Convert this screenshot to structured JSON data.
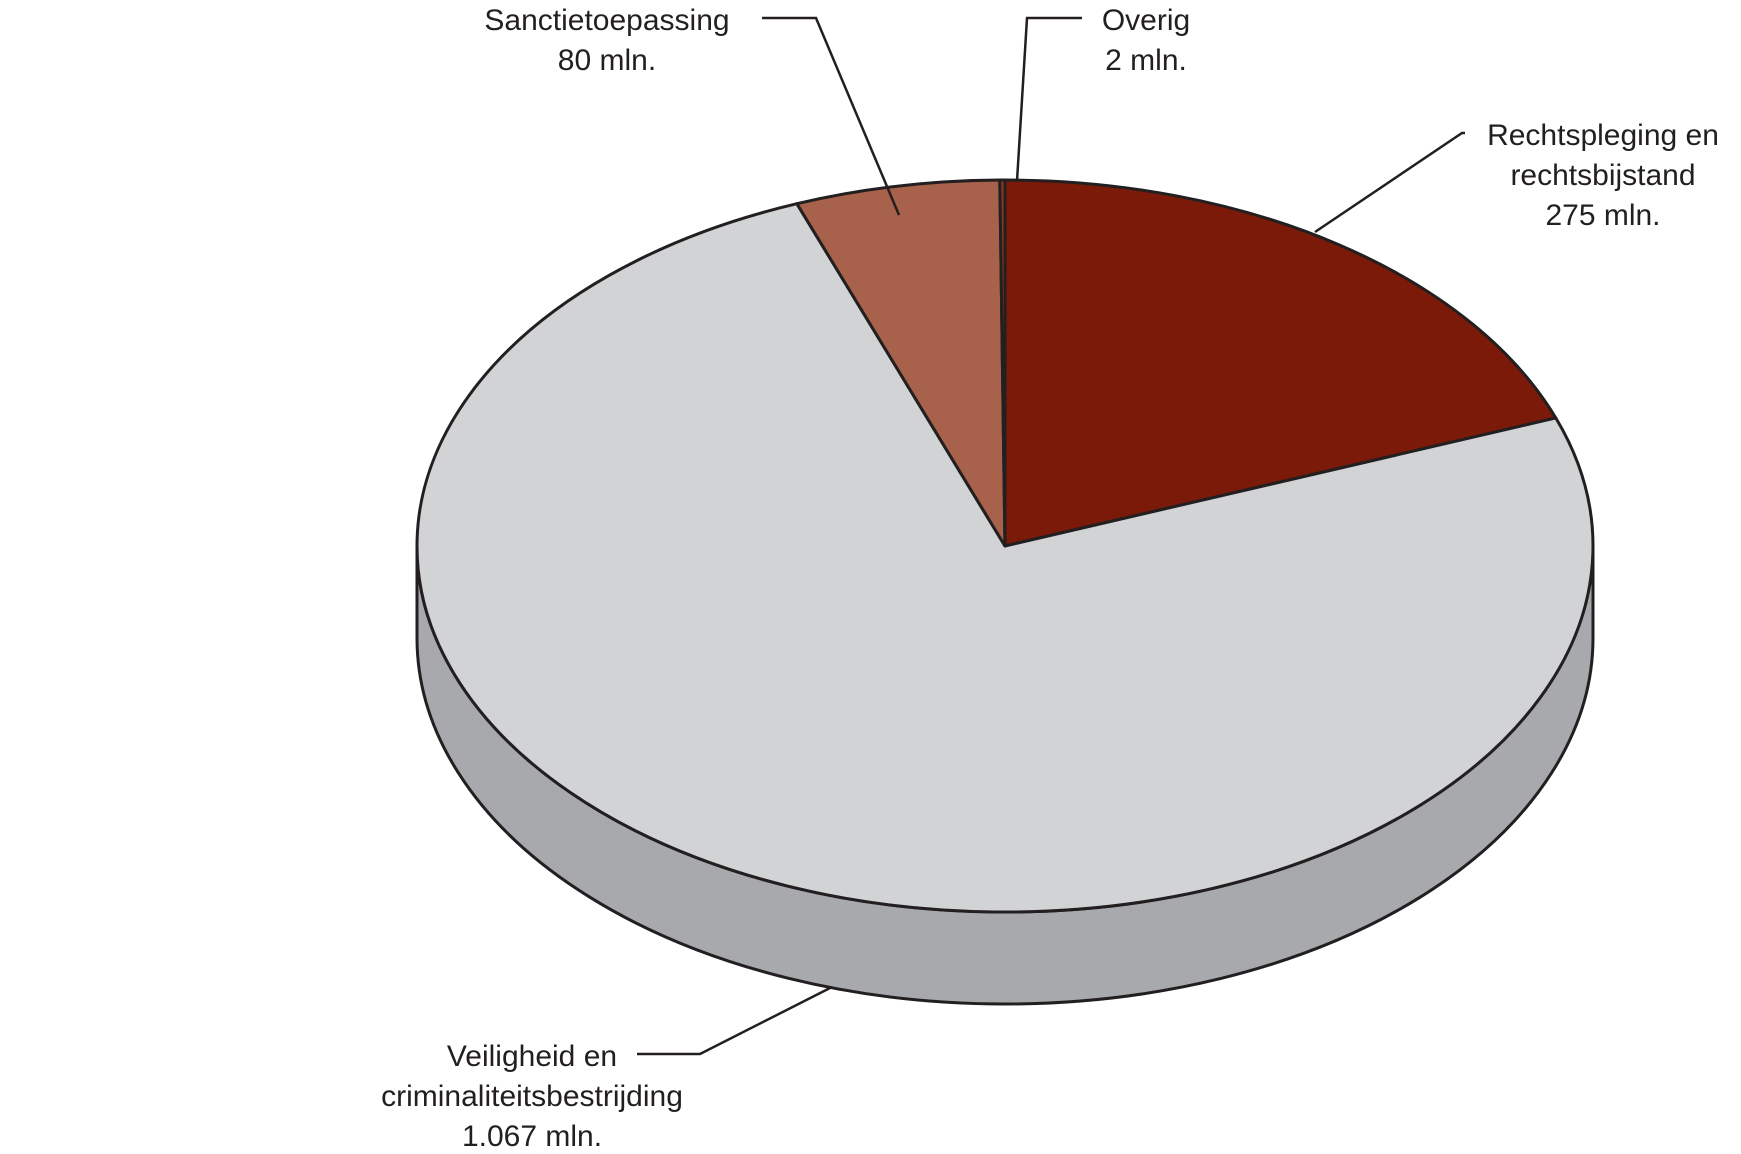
{
  "chart_data": {
    "type": "pie",
    "style": "3d",
    "unit": "mln.",
    "slices": [
      {
        "id": "rechtspleging",
        "label_lines": [
          "Rechtspleging en",
          "rechtsbijstand"
        ],
        "value_label": "275 mln.",
        "value": 275,
        "color": "#7b1a08"
      },
      {
        "id": "veiligheid",
        "label_lines": [
          "Veiligheid en",
          "criminaliteitsbestrijding"
        ],
        "value_label": "1.067 mln.",
        "value": 1067,
        "color": "#d1d3d4"
      },
      {
        "id": "sanctietoepassing",
        "label_lines": [
          "Sanctietoepassing"
        ],
        "value_label": "80 mln.",
        "value": 80,
        "color": "#a8614a"
      },
      {
        "id": "overig",
        "label_lines": [
          "Overig"
        ],
        "value_label": "2 mln.",
        "value": 2,
        "color": "#8a3a1a"
      }
    ],
    "side_color": "#a7a9ac",
    "outline_color": "#231f20"
  }
}
